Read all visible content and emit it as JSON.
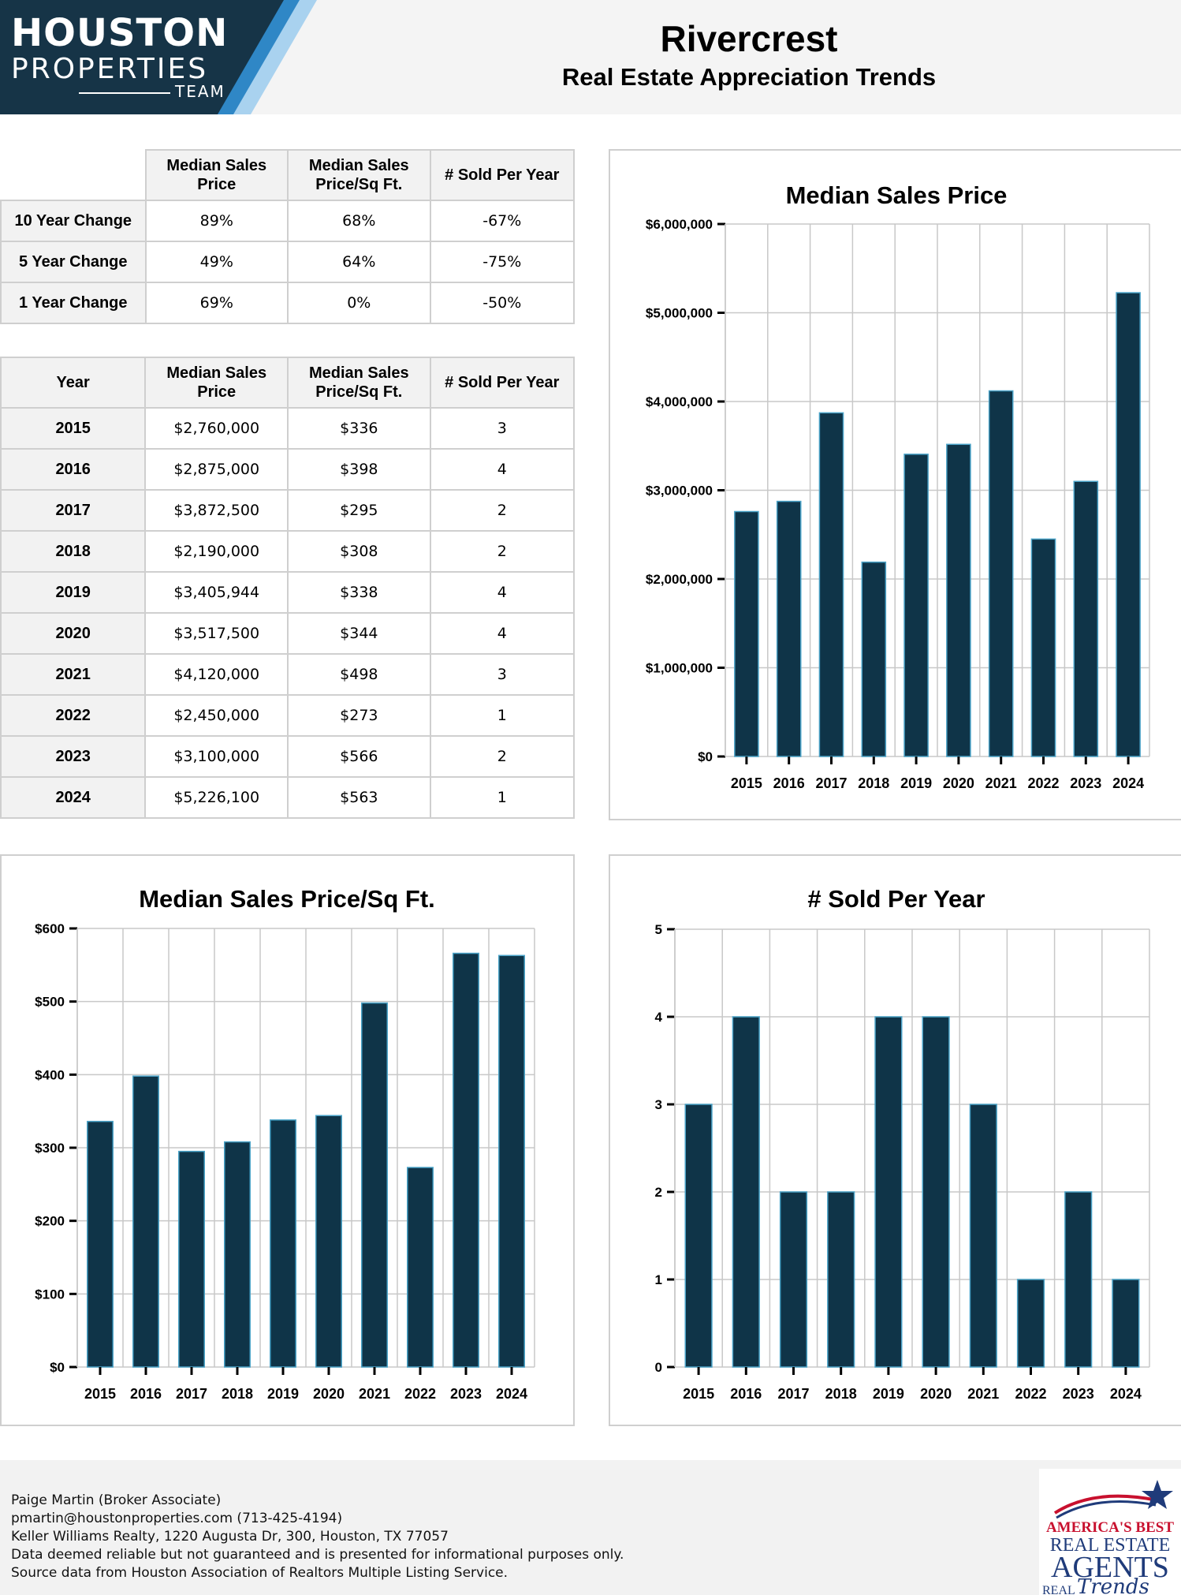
{
  "header": {
    "logo_line1": "HOUSTON",
    "logo_line2": "PROPERTIES",
    "logo_line3": "TEAM",
    "title": "Rivercrest",
    "subtitle": "Real Estate Appreciation Trends"
  },
  "colors": {
    "bar": "#0f3448",
    "bar_edge": "#4aa3c8",
    "logo_dark": "#163447",
    "logo_accent": "#2f87c6",
    "logo_light": "#a9d2ef",
    "grid": "#c8c8c8"
  },
  "change_table": {
    "columns": [
      "Median Sales Price",
      "Median Sales Price/Sq Ft.",
      "# Sold Per Year"
    ],
    "rows": [
      {
        "label": "10 Year Change",
        "values": [
          "89%",
          "68%",
          "-67%"
        ]
      },
      {
        "label": "5 Year Change",
        "values": [
          "49%",
          "64%",
          "-75%"
        ]
      },
      {
        "label": "1 Year Change",
        "values": [
          "69%",
          "0%",
          "-50%"
        ]
      }
    ]
  },
  "year_table": {
    "columns": [
      "Year",
      "Median Sales Price",
      "Median Sales Price/Sq Ft.",
      "# Sold Per Year"
    ],
    "rows": [
      [
        "2015",
        "$2,760,000",
        "$336",
        "3"
      ],
      [
        "2016",
        "$2,875,000",
        "$398",
        "4"
      ],
      [
        "2017",
        "$3,872,500",
        "$295",
        "2"
      ],
      [
        "2018",
        "$2,190,000",
        "$308",
        "2"
      ],
      [
        "2019",
        "$3,405,944",
        "$338",
        "4"
      ],
      [
        "2020",
        "$3,517,500",
        "$344",
        "4"
      ],
      [
        "2021",
        "$4,120,000",
        "$498",
        "3"
      ],
      [
        "2022",
        "$2,450,000",
        "$273",
        "1"
      ],
      [
        "2023",
        "$3,100,000",
        "$566",
        "2"
      ],
      [
        "2024",
        "$5,226,100",
        "$563",
        "1"
      ]
    ]
  },
  "chart_data": [
    {
      "id": "price",
      "type": "bar",
      "title": "Median Sales Price",
      "categories": [
        "2015",
        "2016",
        "2017",
        "2018",
        "2019",
        "2020",
        "2021",
        "2022",
        "2023",
        "2024"
      ],
      "values": [
        2760000,
        2875000,
        3872500,
        2190000,
        3405944,
        3517500,
        4120000,
        2450000,
        3100000,
        5226100
      ],
      "ylim": [
        0,
        6000000
      ],
      "yticks": [
        0,
        1000000,
        2000000,
        3000000,
        4000000,
        5000000,
        6000000
      ],
      "ytick_labels": [
        "$0",
        "$1,000,000",
        "$2,000,000",
        "$3,000,000",
        "$4,000,000",
        "$5,000,000",
        "$6,000,000"
      ],
      "grid": true,
      "xlabel": "",
      "ylabel": ""
    },
    {
      "id": "sqft",
      "type": "bar",
      "title": "Median Sales Price/Sq Ft.",
      "categories": [
        "2015",
        "2016",
        "2017",
        "2018",
        "2019",
        "2020",
        "2021",
        "2022",
        "2023",
        "2024"
      ],
      "values": [
        336,
        398,
        295,
        308,
        338,
        344,
        498,
        273,
        566,
        563
      ],
      "ylim": [
        0,
        600
      ],
      "yticks": [
        0,
        100,
        200,
        300,
        400,
        500,
        600
      ],
      "ytick_labels": [
        "$0",
        "$100",
        "$200",
        "$300",
        "$400",
        "$500",
        "$600"
      ],
      "grid": true,
      "xlabel": "",
      "ylabel": ""
    },
    {
      "id": "sold",
      "type": "bar",
      "title": "# Sold Per Year",
      "categories": [
        "2015",
        "2016",
        "2017",
        "2018",
        "2019",
        "2020",
        "2021",
        "2022",
        "2023",
        "2024"
      ],
      "values": [
        3,
        4,
        2,
        2,
        4,
        4,
        3,
        1,
        2,
        1
      ],
      "ylim": [
        0,
        5
      ],
      "yticks": [
        0,
        1,
        2,
        3,
        4,
        5
      ],
      "ytick_labels": [
        "0",
        "1",
        "2",
        "3",
        "4",
        "5"
      ],
      "grid": true,
      "xlabel": "",
      "ylabel": ""
    }
  ],
  "footer": {
    "lines": [
      "Paige Martin (Broker Associate)",
      "pmartin@houstonproperties.com (713-425-4194)",
      "Keller Williams Realty, 1220 Augusta Dr, 300, Houston, TX 77057",
      "Data deemed reliable but not guaranteed and is presented for informational purposes only.",
      "Source data from Houston Association of Realtors Multiple Listing Service."
    ],
    "badge_line1": "AMERICA'S BEST",
    "badge_line2": "REAL ESTATE",
    "badge_line3": "AGENTS",
    "badge_line4": "REAL",
    "badge_line5": "Trends"
  }
}
